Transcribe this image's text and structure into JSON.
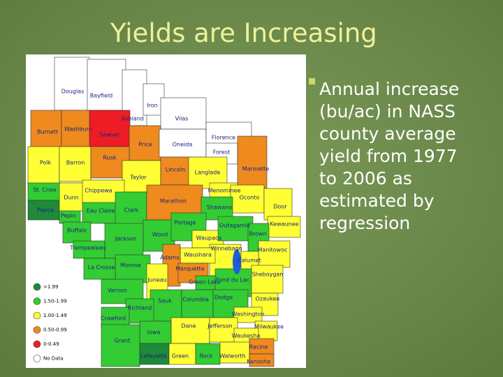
{
  "title": "Yields are Increasing",
  "bullet_lines": [
    "Annual increase",
    "(bu/ac) in NASS",
    "county average",
    "yield from 1977",
    "to 2006 as",
    "estimated by",
    "regression"
  ],
  "legend": [
    {
      "label": ">1.99",
      "color": "#1f8a3a"
    },
    {
      "label": "1.50-1.99",
      "color": "#33cc33"
    },
    {
      "label": "1.00-1.49",
      "color": "#ffff33"
    },
    {
      "label": "0.50-0.99",
      "color": "#ee8a1e"
    },
    {
      "label": "0-0.49",
      "color": "#ee1c25"
    },
    {
      "label": "No Data",
      "color": "#ffffff"
    }
  ],
  "counties": [
    {
      "name": "Douglas",
      "color": "#ffffff"
    },
    {
      "name": "Bayfield",
      "color": "#ffffff"
    },
    {
      "name": "Ashland",
      "color": "#ffffff"
    },
    {
      "name": "Iron",
      "color": "#ffffff"
    },
    {
      "name": "Vilas",
      "color": "#ffffff"
    },
    {
      "name": "Burnett",
      "color": "#ee8a1e"
    },
    {
      "name": "Washburn",
      "color": "#ee8a1e"
    },
    {
      "name": "Sawyer",
      "color": "#ee1c25"
    },
    {
      "name": "Price",
      "color": "#ee8a1e"
    },
    {
      "name": "Oneida",
      "color": "#ffffff"
    },
    {
      "name": "Florence",
      "color": "#ffffff"
    },
    {
      "name": "Forest",
      "color": "#ffffff"
    },
    {
      "name": "Marinette",
      "color": "#ee8a1e"
    },
    {
      "name": "Polk",
      "color": "#ffff33"
    },
    {
      "name": "Barron",
      "color": "#ffff33"
    },
    {
      "name": "Rusk",
      "color": "#ee8a1e"
    },
    {
      "name": "Taylor",
      "color": "#ffff33"
    },
    {
      "name": "Lincoln",
      "color": "#ee8a1e"
    },
    {
      "name": "Langlade",
      "color": "#ffff33"
    },
    {
      "name": "Menominee",
      "color": "#ffff33"
    },
    {
      "name": "Oconto",
      "color": "#ffff33"
    },
    {
      "name": "St. Croix",
      "color": "#33cc33"
    },
    {
      "name": "Pierce",
      "color": "#1f8a3a"
    },
    {
      "name": "Pepin",
      "color": "#33cc33"
    },
    {
      "name": "Dunn",
      "color": "#ffff33"
    },
    {
      "name": "Chippewa",
      "color": "#ffff33"
    },
    {
      "name": "Eau Claire",
      "color": "#33cc33"
    },
    {
      "name": "Clark",
      "color": "#33cc33"
    },
    {
      "name": "Marathon",
      "color": "#ee8a1e"
    },
    {
      "name": "Shawano",
      "color": "#33cc33"
    },
    {
      "name": "Door",
      "color": "#ffff33"
    },
    {
      "name": "Kewaunee",
      "color": "#ffff33"
    },
    {
      "name": "Buffalo",
      "color": "#33cc33"
    },
    {
      "name": "Trempealeau",
      "color": "#33cc33"
    },
    {
      "name": "Jackson",
      "color": "#33cc33"
    },
    {
      "name": "Wood",
      "color": "#33cc33"
    },
    {
      "name": "Portage",
      "color": "#33cc33"
    },
    {
      "name": "Waupaca",
      "color": "#ffff33"
    },
    {
      "name": "Outagamie",
      "color": "#33cc33"
    },
    {
      "name": "Brown",
      "color": "#33cc33"
    },
    {
      "name": "Manitowoc",
      "color": "#ffff33"
    },
    {
      "name": "Winnebago",
      "color": "#ffff33"
    },
    {
      "name": "Calumet",
      "color": "#ffff33"
    },
    {
      "name": "Waushara",
      "color": "#ffff33"
    },
    {
      "name": "Adams",
      "color": "#ee8a1e"
    },
    {
      "name": "Marquette",
      "color": "#ee8a1e"
    },
    {
      "name": "Monroe",
      "color": "#33cc33"
    },
    {
      "name": "La Crosse",
      "color": "#33cc33"
    },
    {
      "name": "Green Lake",
      "color": "#33cc33"
    },
    {
      "name": "Fond du Lac",
      "color": "#33cc33"
    },
    {
      "name": "Sheboygan",
      "color": "#ffff33"
    },
    {
      "name": "Juneau",
      "color": "#ffff33"
    },
    {
      "name": "Vernon",
      "color": "#33cc33"
    },
    {
      "name": "Sauk",
      "color": "#33cc33"
    },
    {
      "name": "Columbia",
      "color": "#33cc33"
    },
    {
      "name": "Dodge",
      "color": "#33cc33"
    },
    {
      "name": "Ozaukee",
      "color": "#ffff33"
    },
    {
      "name": "Richland",
      "color": "#33cc33"
    },
    {
      "name": "Crawford",
      "color": "#33cc33"
    },
    {
      "name": "Washington",
      "color": "#ffff33"
    },
    {
      "name": "Dane",
      "color": "#ffff33"
    },
    {
      "name": "Jefferson",
      "color": "#ffff33"
    },
    {
      "name": "Milwaukee",
      "color": "#ffff33"
    },
    {
      "name": "Waukesha",
      "color": "#ffff33"
    },
    {
      "name": "Iowa",
      "color": "#33cc33"
    },
    {
      "name": "Grant",
      "color": "#33cc33"
    },
    {
      "name": "Racine",
      "color": "#ee8a1e"
    },
    {
      "name": "Lafayette",
      "color": "#1f8a3a"
    },
    {
      "name": "Green",
      "color": "#ffff33"
    },
    {
      "name": "Rock",
      "color": "#33cc33"
    },
    {
      "name": "Walworth",
      "color": "#ffff33"
    },
    {
      "name": "Kenosha",
      "color": "#ee8a1e"
    }
  ]
}
